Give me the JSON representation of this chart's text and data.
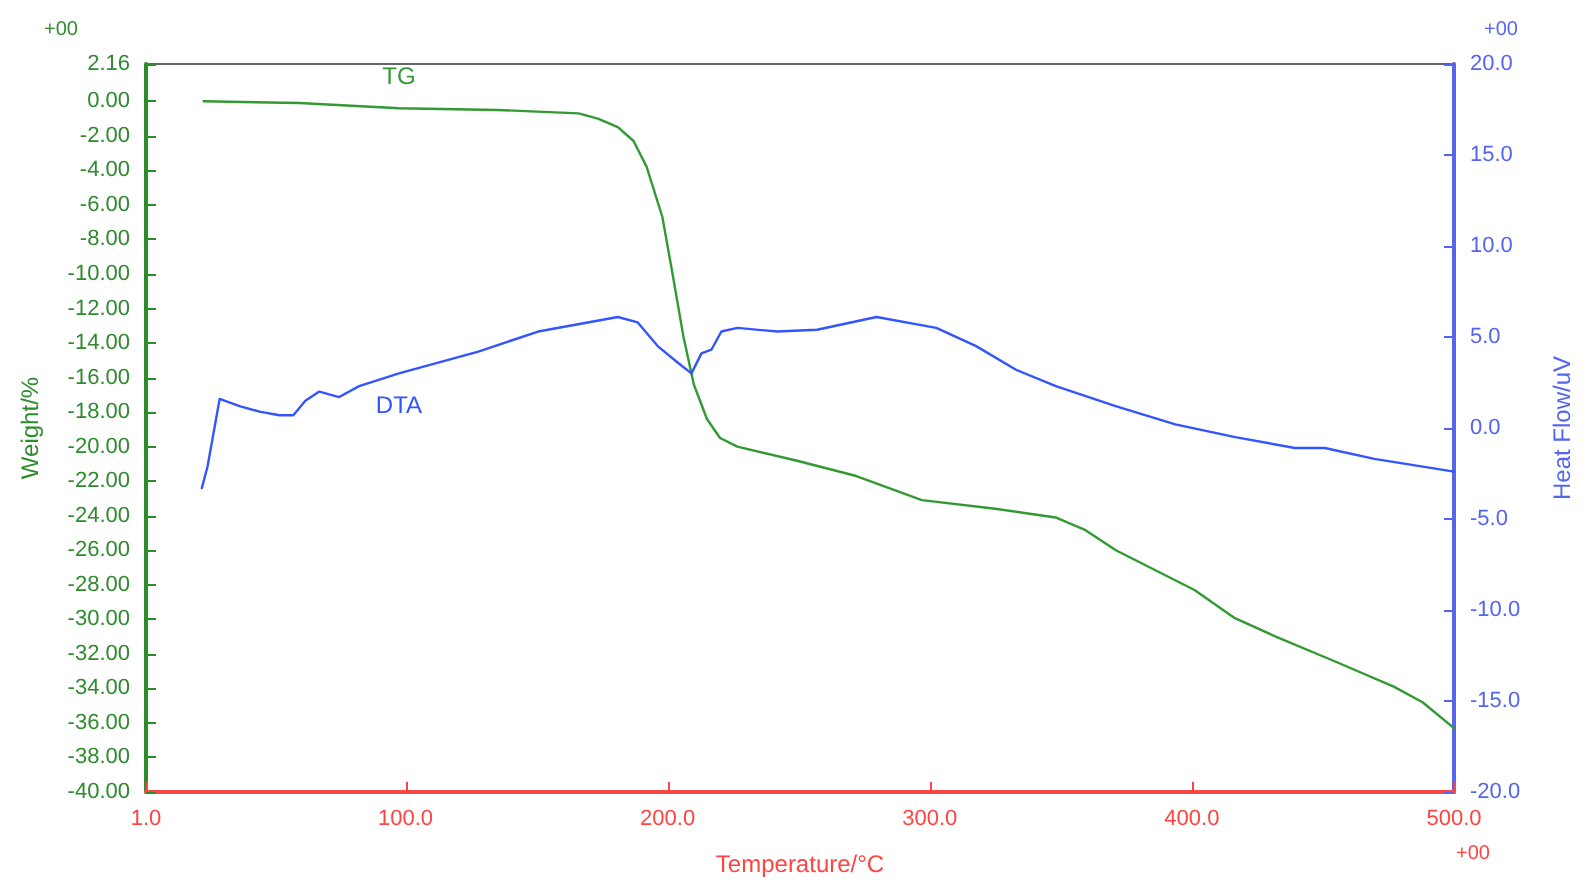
{
  "chart_data": {
    "type": "line",
    "xlabel": "Temperature/°C",
    "ylabel": "Weight/%",
    "y2label": "Heat Flow/uV",
    "annotations": [
      "+00",
      "+00",
      "+00"
    ],
    "xlim": [
      1,
      500
    ],
    "xticks": [
      {
        "value": 1,
        "label": "1.0"
      },
      {
        "value": 100,
        "label": "100.0"
      },
      {
        "value": 200,
        "label": "200.0"
      },
      {
        "value": 300,
        "label": "300.0"
      },
      {
        "value": 400,
        "label": "400.0"
      },
      {
        "value": 500,
        "label": "500.0"
      }
    ],
    "ylim": [
      -40,
      2.16
    ],
    "yticks": [
      {
        "value": 2.16,
        "label": "2.16"
      },
      {
        "value": 0,
        "label": "0.00"
      },
      {
        "value": -2,
        "label": "-2.00"
      },
      {
        "value": -4,
        "label": "-4.00"
      },
      {
        "value": -6,
        "label": "-6.00"
      },
      {
        "value": -8,
        "label": "-8.00"
      },
      {
        "value": -10,
        "label": "-10.00"
      },
      {
        "value": -12,
        "label": "-12.00"
      },
      {
        "value": -14,
        "label": "-14.00"
      },
      {
        "value": -16,
        "label": "-16.00"
      },
      {
        "value": -18,
        "label": "-18.00"
      },
      {
        "value": -20,
        "label": "-20.00"
      },
      {
        "value": -22,
        "label": "-22.00"
      },
      {
        "value": -24,
        "label": "-24.00"
      },
      {
        "value": -26,
        "label": "-26.00"
      },
      {
        "value": -28,
        "label": "-28.00"
      },
      {
        "value": -30,
        "label": "-30.00"
      },
      {
        "value": -32,
        "label": "-32.00"
      },
      {
        "value": -34,
        "label": "-34.00"
      },
      {
        "value": -36,
        "label": "-36.00"
      },
      {
        "value": -38,
        "label": "-38.00"
      },
      {
        "value": -40,
        "label": "-40.00"
      }
    ],
    "y2lim": [
      -20,
      20
    ],
    "y2ticks": [
      {
        "value": 20,
        "label": "20.0"
      },
      {
        "value": 15,
        "label": "15.0"
      },
      {
        "value": 10,
        "label": "10.0"
      },
      {
        "value": 5,
        "label": "5.0"
      },
      {
        "value": 0,
        "label": "0.0"
      },
      {
        "value": -5,
        "label": "-5.0"
      },
      {
        "value": -10,
        "label": "-10.0"
      },
      {
        "value": -15,
        "label": "-15.0"
      },
      {
        "value": -20,
        "label": "-20.0"
      }
    ],
    "grid": false,
    "legend": false,
    "marker": "none",
    "line_style": "solid",
    "series": [
      {
        "name": "TG",
        "color": "#339933",
        "x": [
          23,
          59.5,
          97.5,
          135,
          166,
          173.4,
          181,
          187,
          192,
          198,
          202,
          206,
          210,
          215,
          220,
          226.6,
          249,
          272,
          297,
          325,
          348,
          359,
          371,
          401,
          416,
          432,
          454,
          477,
          488,
          500
        ],
        "values": [
          0,
          -0.1,
          -0.4,
          -0.5,
          -0.7,
          -1.0,
          -1.5,
          -2.3,
          -3.8,
          -6.7,
          -10.1,
          -13.6,
          -16.4,
          -18.4,
          -19.5,
          -20.0,
          -20.8,
          -21.7,
          -23.1,
          -23.6,
          -24.1,
          -24.8,
          -26.0,
          -28.3,
          -29.9,
          -31.0,
          -32.4,
          -33.9,
          -34.8,
          -36.3
        ]
      },
      {
        "name": "DTA",
        "color": "#3355ff",
        "axis": "y2",
        "x": [
          22.3,
          24.5,
          29.1,
          36.7,
          44.3,
          51.9,
          57.2,
          61.8,
          67.1,
          74.7,
          82.3,
          97.5,
          127.8,
          150.6,
          165.8,
          181,
          188.6,
          196.2,
          203.8,
          209.1,
          212.9,
          216.7,
          220.5,
          226.6,
          241.8,
          257,
          279.7,
          302.5,
          317.7,
          332.9,
          348.1,
          370.9,
          393.7,
          416.5,
          439.3,
          450.7,
          469.6,
          500
        ],
        "values": [
          -3.3,
          -2.1,
          1.6,
          1.2,
          0.9,
          0.7,
          0.7,
          1.5,
          2.0,
          1.7,
          2.3,
          3.0,
          4.2,
          5.3,
          5.7,
          6.1,
          5.8,
          4.5,
          3.6,
          3.0,
          4.1,
          4.3,
          5.3,
          5.5,
          5.3,
          5.4,
          6.1,
          5.5,
          4.5,
          3.2,
          2.3,
          1.2,
          0.2,
          -0.5,
          -1.1,
          -1.1,
          -1.7,
          -2.4
        ]
      }
    ]
  }
}
